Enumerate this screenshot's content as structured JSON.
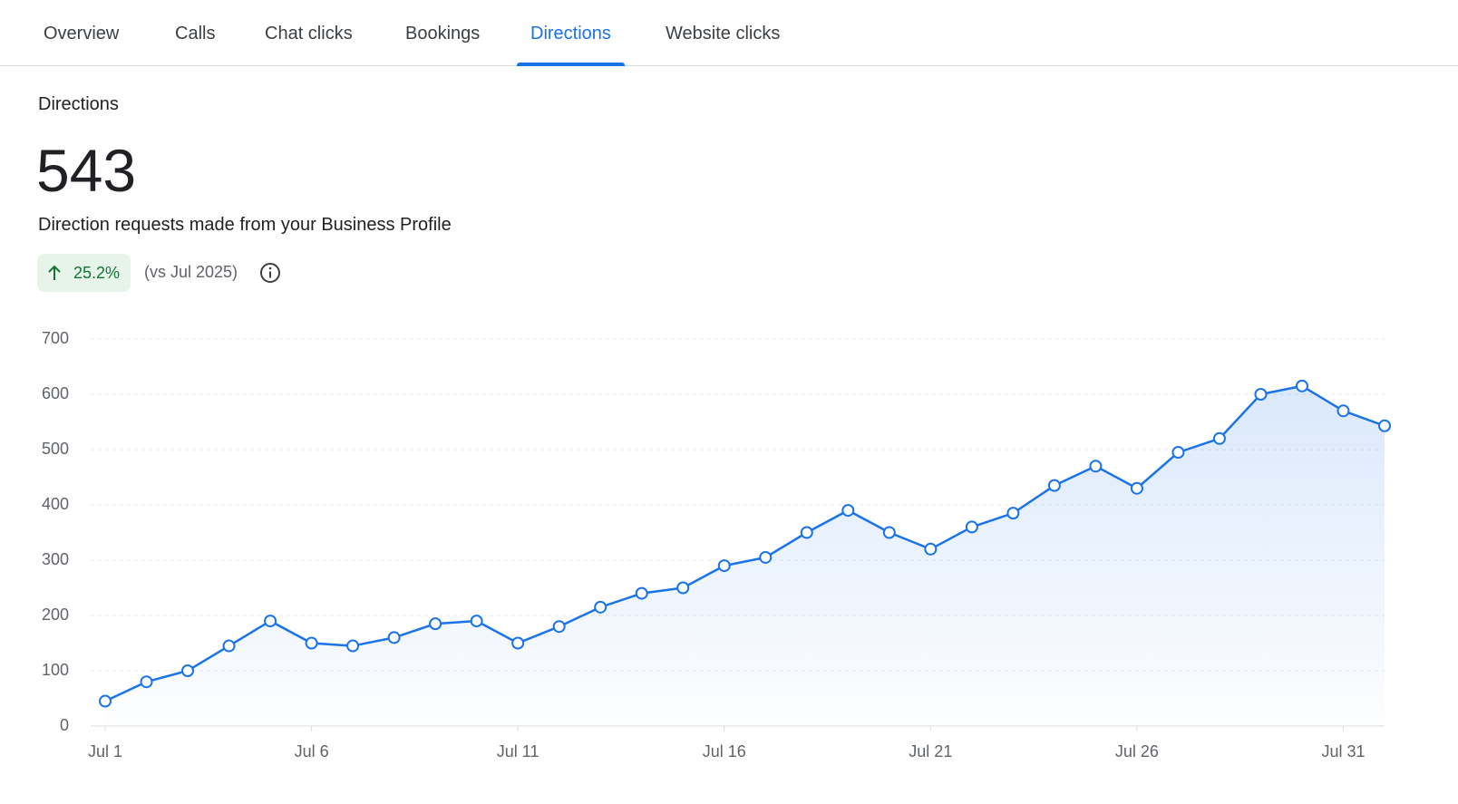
{
  "tabs": [
    "Overview",
    "Calls",
    "Chat clicks",
    "Bookings",
    "Directions",
    "Website clicks"
  ],
  "active_tab": 4,
  "panel": {
    "title": "Directions",
    "total": "543",
    "description": "Direction requests made from your Business Profile",
    "change": "25.2%",
    "comparison": "(vs Jul 2025)"
  },
  "chart_data": {
    "type": "line",
    "categories": [
      "Jul 1",
      null,
      null,
      null,
      null,
      "Jul 6",
      null,
      null,
      null,
      null,
      "Jul 11",
      null,
      null,
      null,
      null,
      "Jul 16",
      null,
      null,
      null,
      null,
      "Jul 21",
      null,
      null,
      null,
      null,
      "Jul 26",
      null,
      null,
      null,
      null,
      "Jul 31",
      null
    ],
    "values": [
      45,
      80,
      100,
      145,
      190,
      150,
      145,
      160,
      185,
      190,
      150,
      180,
      215,
      240,
      250,
      290,
      305,
      350,
      390,
      350,
      320,
      360,
      385,
      435,
      470,
      430,
      495,
      520,
      600,
      615,
      570,
      543
    ],
    "color": "#1a73e8",
    "ylim": [
      0,
      700
    ],
    "yticks": [
      0,
      100,
      200,
      300,
      400,
      500,
      600,
      700
    ],
    "grid": true
  }
}
